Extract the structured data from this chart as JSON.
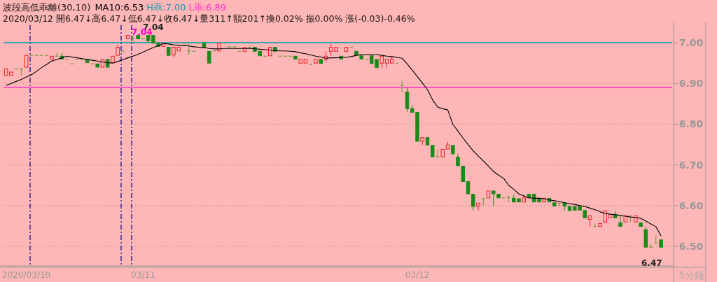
{
  "chart_data": {
    "type": "candlestick",
    "title": "波段高低乖離(30,10)",
    "subtitle": "2020/03/12 開6.47↓高6.47↓低6.47↓收6.47↓量311↑額201↑換0.02% 振0.00% 漲(-0.03)-0.46%",
    "categories": [
      null,
      null,
      null,
      null,
      "2020/03/10",
      null,
      null,
      null,
      null,
      null,
      null,
      null,
      null,
      null,
      null,
      null,
      null,
      null,
      null,
      null,
      null,
      null,
      null,
      null,
      null,
      null,
      null,
      "03/11",
      null,
      null,
      null,
      null,
      null,
      null,
      null,
      null,
      null,
      null,
      null,
      null,
      null,
      null,
      null,
      null,
      null,
      null,
      null,
      null,
      null,
      null,
      null,
      null,
      null,
      null,
      null,
      null,
      null,
      null,
      null,
      null,
      null,
      null,
      null,
      null,
      null,
      null,
      null,
      null,
      null,
      null,
      null,
      null,
      null,
      null,
      null,
      null,
      null,
      null,
      null,
      null,
      null,
      "03/12",
      null,
      null,
      null,
      null,
      null,
      null,
      null,
      null,
      null,
      null,
      null,
      null,
      null,
      null,
      null,
      null,
      null,
      null,
      null,
      null,
      null,
      null,
      null,
      null,
      null,
      null,
      null,
      null,
      null,
      null,
      null,
      null,
      null,
      null,
      null,
      null,
      null,
      null,
      null,
      null,
      null,
      null,
      null,
      null,
      null,
      null,
      null,
      null
    ],
    "xlabel": "5分鐘",
    "ohlc": [
      [
        6.92,
        6.936,
        6.92,
        6.936
      ],
      [
        6.92,
        6.928,
        6.92,
        6.928
      ],
      [
        6.936,
        6.936,
        6.936,
        6.936
      ],
      [
        6.936,
        6.936,
        6.92,
        6.936
      ],
      [
        6.94,
        6.969,
        6.94,
        6.969
      ],
      [
        6.969,
        6.969,
        6.969,
        6.969
      ],
      [
        6.969,
        6.969,
        6.969,
        6.969
      ],
      [
        6.969,
        6.969,
        6.969,
        6.969
      ],
      [
        6.969,
        6.969,
        6.969,
        6.969
      ],
      [
        6.96,
        6.967,
        6.96,
        6.967
      ],
      [
        6.967,
        6.975,
        6.967,
        6.967
      ],
      [
        6.967,
        6.975,
        6.96,
        6.96
      ],
      [
        6.959,
        6.959,
        6.959,
        6.959
      ],
      [
        6.948,
        6.948,
        6.948,
        6.948
      ],
      [
        6.959,
        6.959,
        6.959,
        6.959
      ],
      [
        6.959,
        6.959,
        6.959,
        6.959
      ],
      [
        6.959,
        6.959,
        6.951,
        6.951
      ],
      [
        6.948,
        6.948,
        6.948,
        6.948
      ],
      [
        6.948,
        6.948,
        6.94,
        6.94
      ],
      [
        6.94,
        6.959,
        6.94,
        6.959
      ],
      [
        6.959,
        6.959,
        6.94,
        6.94
      ],
      [
        6.951,
        6.967,
        6.951,
        6.967
      ],
      [
        6.969,
        6.996,
        6.969,
        6.989
      ],
      [
        6.979,
        6.979,
        6.979,
        6.979
      ],
      [
        7.01,
        7.018,
        7.01,
        7.018
      ],
      [
        7.01,
        7.018,
        7.0,
        7.01
      ],
      [
        7.018,
        7.018,
        7.01,
        7.01
      ],
      [
        7.01,
        7.01,
        7.01,
        7.01
      ],
      [
        7.018,
        7.018,
        6.999,
        7.005
      ],
      [
        7.018,
        7.018,
        6.999,
        6.999
      ],
      [
        6.999,
        6.999,
        6.991,
        6.991
      ],
      [
        6.991,
        6.999,
        6.991,
        6.999
      ],
      [
        6.989,
        6.989,
        6.969,
        6.969
      ],
      [
        6.97,
        6.989,
        6.965,
        6.989
      ],
      [
        6.98,
        6.989,
        6.98,
        6.989
      ],
      [
        6.999,
        6.999,
        6.999,
        6.999
      ],
      [
        6.98,
        6.999,
        6.97,
        6.98
      ],
      [
        6.979,
        6.979,
        6.979,
        6.979
      ],
      [
        6.999,
        6.999,
        6.999,
        6.999
      ],
      [
        6.999,
        6.999,
        6.989,
        6.989
      ],
      [
        6.979,
        6.979,
        6.95,
        6.95
      ],
      [
        6.98,
        6.98,
        6.98,
        6.98
      ],
      [
        6.98,
        6.999,
        6.98,
        6.999
      ],
      [
        6.999,
        6.999,
        6.999,
        6.999
      ],
      [
        6.99,
        6.99,
        6.99,
        6.99
      ],
      [
        6.99,
        6.99,
        6.99,
        6.99
      ],
      [
        6.979,
        6.979,
        6.979,
        6.979
      ],
      [
        6.979,
        6.989,
        6.979,
        6.988
      ],
      [
        6.989,
        6.989,
        6.989,
        6.989
      ],
      [
        6.989,
        6.989,
        6.979,
        6.979
      ],
      [
        6.979,
        6.979,
        6.968,
        6.968
      ],
      [
        6.967,
        6.967,
        6.967,
        6.967
      ],
      [
        6.968,
        6.989,
        6.968,
        6.989
      ],
      [
        6.989,
        6.989,
        6.979,
        6.979
      ],
      [
        6.967,
        6.967,
        6.967,
        6.967
      ],
      [
        6.967,
        6.967,
        6.967,
        6.967
      ],
      [
        6.967,
        6.967,
        6.967,
        6.967
      ],
      [
        6.967,
        6.967,
        6.96,
        6.96
      ],
      [
        6.95,
        6.959,
        6.95,
        6.959
      ],
      [
        6.95,
        6.959,
        6.95,
        6.959
      ],
      [
        6.947,
        6.947,
        6.947,
        6.947
      ],
      [
        6.95,
        6.959,
        6.95,
        6.959
      ],
      [
        6.959,
        6.959,
        6.949,
        6.949
      ],
      [
        6.96,
        6.979,
        6.955,
        6.967
      ],
      [
        6.979,
        6.997,
        6.968,
        6.989
      ],
      [
        6.979,
        6.989,
        6.979,
        6.989
      ],
      [
        6.967,
        6.967,
        6.96,
        6.96
      ],
      [
        6.979,
        6.989,
        6.979,
        6.989
      ],
      [
        6.989,
        6.989,
        6.989,
        6.989
      ],
      [
        6.979,
        6.979,
        6.97,
        6.97
      ],
      [
        6.968,
        6.968,
        6.96,
        6.96
      ],
      [
        6.959,
        6.959,
        6.959,
        6.959
      ],
      [
        6.968,
        6.968,
        6.949,
        6.949
      ],
      [
        6.959,
        6.959,
        6.939,
        6.939
      ],
      [
        6.95,
        6.968,
        6.939,
        6.967
      ],
      [
        6.95,
        6.959,
        6.939,
        6.959
      ],
      [
        6.95,
        6.967,
        6.95,
        6.959
      ],
      [
        6.949,
        6.949,
        6.949,
        6.949
      ],
      [
        6.895,
        6.907,
        6.879,
        6.895
      ],
      [
        6.879,
        6.89,
        6.83,
        6.838
      ],
      [
        6.838,
        6.847,
        6.829,
        6.829
      ],
      [
        6.829,
        6.829,
        6.758,
        6.758
      ],
      [
        6.758,
        6.767,
        6.749,
        6.767
      ],
      [
        6.767,
        6.767,
        6.749,
        6.749
      ],
      [
        6.748,
        6.748,
        6.72,
        6.72
      ],
      [
        6.72,
        6.738,
        6.718,
        6.72
      ],
      [
        6.72,
        6.738,
        6.72,
        6.738
      ],
      [
        6.739,
        6.756,
        6.739,
        6.749
      ],
      [
        6.748,
        6.748,
        6.727,
        6.727
      ],
      [
        6.719,
        6.727,
        6.698,
        6.698
      ],
      [
        6.697,
        6.697,
        6.659,
        6.659
      ],
      [
        6.659,
        6.659,
        6.629,
        6.629
      ],
      [
        6.628,
        6.628,
        6.588,
        6.598
      ],
      [
        6.599,
        6.606,
        6.589,
        6.606
      ],
      [
        6.617,
        6.617,
        6.599,
        6.617
      ],
      [
        6.619,
        6.636,
        6.619,
        6.636
      ],
      [
        6.636,
        6.636,
        6.599,
        6.629
      ],
      [
        6.628,
        6.628,
        6.619,
        6.619
      ],
      [
        6.619,
        6.619,
        6.619,
        6.619
      ],
      [
        6.62,
        6.625,
        6.608,
        6.62
      ],
      [
        6.618,
        6.627,
        6.609,
        6.609
      ],
      [
        6.617,
        6.617,
        6.609,
        6.609
      ],
      [
        6.609,
        6.627,
        6.609,
        6.619
      ],
      [
        6.628,
        6.628,
        6.619,
        6.619
      ],
      [
        6.628,
        6.628,
        6.609,
        6.609
      ],
      [
        6.618,
        6.618,
        6.609,
        6.609
      ],
      [
        6.609,
        6.618,
        6.609,
        6.618
      ],
      [
        6.618,
        6.618,
        6.609,
        6.609
      ],
      [
        6.607,
        6.607,
        6.599,
        6.599
      ],
      [
        6.606,
        6.606,
        6.598,
        6.606
      ],
      [
        6.607,
        6.607,
        6.588,
        6.599
      ],
      [
        6.598,
        6.598,
        6.588,
        6.588
      ],
      [
        6.598,
        6.598,
        6.589,
        6.589
      ],
      [
        6.598,
        6.598,
        6.589,
        6.589
      ],
      [
        6.588,
        6.588,
        6.57,
        6.57
      ],
      [
        6.566,
        6.575,
        6.549,
        6.575
      ],
      [
        6.549,
        6.556,
        6.549,
        6.549
      ],
      [
        6.549,
        6.556,
        6.549,
        6.556
      ],
      [
        6.56,
        6.588,
        6.558,
        6.587
      ],
      [
        6.57,
        6.578,
        6.57,
        6.578
      ],
      [
        6.578,
        6.587,
        6.57,
        6.57
      ],
      [
        6.558,
        6.575,
        6.549,
        6.549
      ],
      [
        6.56,
        6.575,
        6.56,
        6.575
      ],
      [
        6.575,
        6.575,
        6.56,
        6.575
      ],
      [
        6.56,
        6.575,
        6.56,
        6.575
      ],
      [
        6.558,
        6.558,
        6.549,
        6.549
      ],
      [
        6.541,
        6.548,
        6.498,
        6.498
      ],
      [
        6.498,
        6.506,
        6.498,
        6.498
      ],
      [
        6.508,
        6.527,
        6.508,
        6.508
      ],
      [
        6.516,
        6.516,
        6.498,
        6.498
      ]
    ],
    "series": [
      {
        "type": "line",
        "name": "MA10:6.53",
        "color": "#000000",
        "values": [
          6.895,
          6.9,
          6.905,
          6.91,
          6.916,
          6.921,
          6.93,
          6.939,
          6.947,
          6.955,
          6.959,
          6.963,
          6.967,
          6.965,
          6.963,
          6.961,
          6.959,
          6.957,
          6.955,
          6.953,
          6.951,
          6.95,
          6.954,
          6.958,
          6.963,
          6.967,
          6.972,
          6.977,
          6.983,
          6.988,
          6.993,
          6.998,
          6.997,
          6.995,
          6.994,
          6.993,
          6.992,
          6.99,
          6.989,
          6.988,
          6.986,
          6.985,
          6.985,
          6.986,
          6.986,
          6.986,
          6.986,
          6.986,
          6.986,
          6.985,
          6.984,
          6.983,
          6.982,
          6.981,
          6.98,
          6.98,
          6.979,
          6.978,
          6.975,
          6.973,
          6.97,
          6.967,
          6.965,
          6.962,
          6.963,
          6.963,
          6.964,
          6.964,
          6.966,
          6.969,
          6.971,
          6.971,
          6.971,
          6.971,
          6.969,
          6.967,
          6.966,
          6.964,
          6.962,
          6.948,
          6.933,
          6.917,
          6.901,
          6.885,
          6.86,
          6.842,
          6.838,
          6.835,
          6.8,
          6.783,
          6.766,
          6.75,
          6.735,
          6.722,
          6.71,
          6.697,
          6.684,
          6.675,
          6.667,
          6.65,
          6.64,
          6.629,
          6.624,
          6.619,
          6.618,
          6.618,
          6.617,
          6.614,
          6.612,
          6.61,
          6.607,
          6.605,
          6.603,
          6.6,
          6.598,
          6.594,
          6.59,
          6.585,
          6.581,
          6.579,
          6.578,
          6.576,
          6.574,
          6.572,
          6.571,
          6.569,
          6.562,
          6.555,
          6.548,
          6.526
        ]
      }
    ],
    "ylim": [
      6.452,
      7.05
    ],
    "yticks": [
      {
        "value": 6.5,
        "label": "6.50"
      },
      {
        "value": 6.6,
        "label": "6.60"
      },
      {
        "value": 6.7,
        "label": "6.70"
      },
      {
        "value": 6.8,
        "label": "6.80"
      },
      {
        "value": 6.9,
        "label": "6.90"
      },
      {
        "value": 7.0,
        "label": "7.00"
      }
    ],
    "grid": "y",
    "ref_lines": [
      {
        "axis": "y",
        "value": 7.0,
        "label": "H乖:7.00",
        "color": "#00a0b0",
        "line_style": "solid"
      },
      {
        "axis": "y",
        "value": 6.89,
        "label": "L乖:6.89",
        "color": "#ff33cc",
        "line_style": "solid"
      }
    ],
    "annotations": [
      "7.04",
      "7.04",
      "6.47"
    ]
  }
}
